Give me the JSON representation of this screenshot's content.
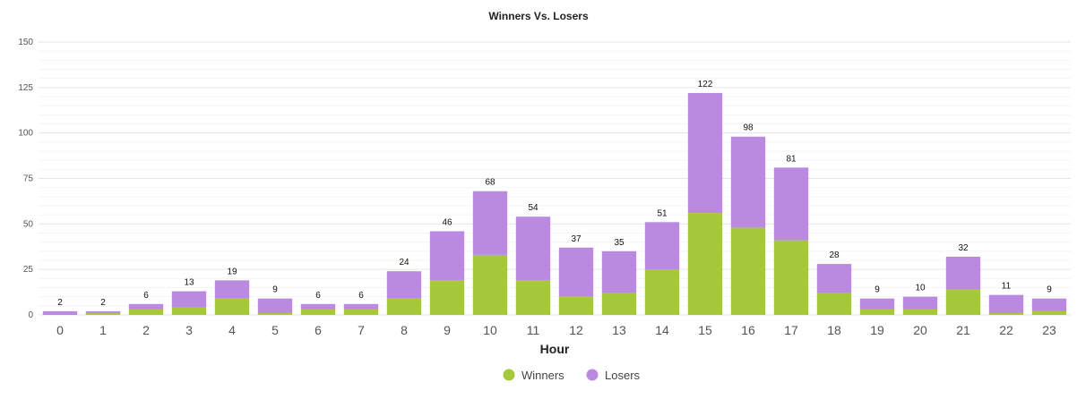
{
  "chart_data": {
    "type": "bar",
    "stacked": true,
    "title": "Winners Vs. Losers",
    "xlabel": "Hour",
    "ylabel": "",
    "ylim": [
      0,
      150
    ],
    "yticks": [
      0,
      25,
      50,
      75,
      100,
      125,
      150
    ],
    "categories": [
      "0",
      "1",
      "2",
      "3",
      "4",
      "5",
      "6",
      "7",
      "8",
      "9",
      "10",
      "11",
      "12",
      "13",
      "14",
      "15",
      "16",
      "17",
      "18",
      "19",
      "20",
      "21",
      "22",
      "23"
    ],
    "series": [
      {
        "name": "Winners",
        "color": "#a5c93a",
        "values": [
          0,
          1,
          3,
          4,
          9,
          1,
          3,
          3,
          9,
          19,
          33,
          19,
          10,
          12,
          25,
          56,
          48,
          41,
          12,
          3,
          3,
          14,
          1,
          2
        ]
      },
      {
        "name": "Losers",
        "color": "#b98ae0",
        "values": [
          2,
          1,
          3,
          9,
          10,
          8,
          3,
          3,
          15,
          27,
          35,
          35,
          27,
          23,
          26,
          66,
          50,
          40,
          16,
          6,
          7,
          18,
          10,
          7
        ]
      }
    ],
    "totals": [
      2,
      2,
      6,
      13,
      19,
      9,
      6,
      6,
      24,
      46,
      68,
      54,
      37,
      35,
      51,
      122,
      98,
      81,
      28,
      9,
      10,
      32,
      11,
      9
    ],
    "grid": true,
    "legend_position": "bottom-center"
  }
}
